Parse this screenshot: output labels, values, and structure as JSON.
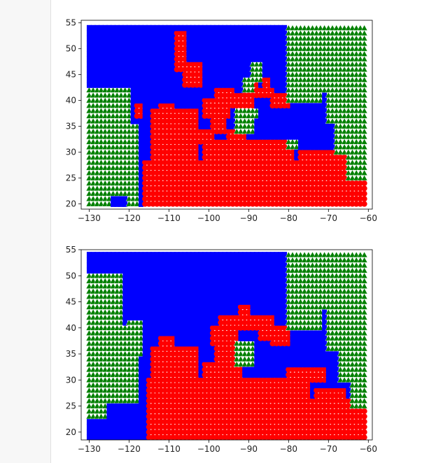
{
  "notebook": {
    "gutter_color": "#f7f7f7"
  },
  "colors": {
    "class_blue": "#0000ff",
    "class_red": "#ff0000",
    "class_green": "#008000",
    "marker_edge": "#ffffff",
    "axis": "#000000"
  },
  "chart_data": [
    {
      "type": "scatter",
      "title": "",
      "xlabel": "",
      "ylabel": "",
      "xlim": [
        -132,
        -59
      ],
      "ylim": [
        19,
        55.5
      ],
      "xticks": [
        -130,
        -120,
        -110,
        -100,
        -90,
        -80,
        -70,
        -60
      ],
      "yticks": [
        20,
        25,
        30,
        35,
        40,
        45,
        50,
        55
      ],
      "xtick_labels": [
        "−130",
        "−120",
        "−110",
        "−100",
        "−90",
        "−80",
        "−70",
        "−60"
      ],
      "ytick_labels": [
        "20",
        "25",
        "30",
        "35",
        "40",
        "45",
        "50",
        "55"
      ],
      "grid": false,
      "marker_spacing": 1,
      "x_range": [
        -130,
        -61
      ],
      "y_range": [
        20,
        54.5
      ],
      "series": [
        {
          "color": "blue",
          "marker": "square"
        },
        {
          "color": "red",
          "marker": "circle"
        },
        {
          "color": "green",
          "marker": "triangle"
        }
      ],
      "regions": {
        "red": [
          [
            -116,
            20,
            -61,
            28
          ],
          [
            -114,
            28,
            -103,
            38
          ],
          [
            -112,
            38,
            -109,
            39
          ],
          [
            -101,
            28,
            -79,
            32
          ],
          [
            -103,
            32,
            -99,
            34
          ],
          [
            -95,
            31,
            -91,
            34
          ],
          [
            -99,
            34,
            -96,
            38
          ],
          [
            -101,
            37,
            -95,
            40
          ],
          [
            -98,
            40,
            -94,
            42
          ],
          [
            -94,
            39,
            -89,
            41
          ],
          [
            -90,
            41,
            -84,
            42
          ],
          [
            -84,
            39,
            -80,
            41
          ],
          [
            -86,
            42,
            -85,
            44
          ],
          [
            -89,
            42,
            -88,
            43
          ],
          [
            -108,
            46,
            -106,
            53
          ],
          [
            -106,
            43,
            -102,
            47
          ],
          [
            -118,
            37,
            -117,
            39
          ],
          [
            -77,
            28,
            -65,
            30
          ],
          [
            -72,
            27,
            -64,
            28
          ]
        ],
        "green": [
          [
            -130,
            22,
            -120,
            42
          ],
          [
            -122,
            22,
            -118,
            35
          ],
          [
            -120,
            20,
            -118,
            27
          ],
          [
            -130,
            20,
            -125,
            22
          ],
          [
            -80,
            40,
            -72,
            54.5
          ],
          [
            -72,
            42,
            -61,
            54.5
          ],
          [
            -70,
            36,
            -61,
            42
          ],
          [
            -68,
            30,
            -61,
            36
          ],
          [
            -65,
            25,
            -61,
            30
          ],
          [
            -93,
            34,
            -89,
            38
          ],
          [
            -89,
            37,
            -88,
            38
          ],
          [
            -91,
            42,
            -89,
            44
          ],
          [
            -89,
            44,
            -87,
            47
          ],
          [
            -80,
            31,
            -78,
            32
          ]
        ]
      }
    },
    {
      "type": "scatter",
      "title": "",
      "xlabel": "",
      "ylabel": "",
      "xlim": [
        -132,
        -59
      ],
      "ylim": [
        18.5,
        55
      ],
      "xticks": [
        -130,
        -120,
        -110,
        -100,
        -90,
        -80,
        -70,
        -60
      ],
      "yticks": [
        20,
        25,
        30,
        35,
        40,
        45,
        50,
        55
      ],
      "xtick_labels": [
        "−130",
        "−120",
        "−110",
        "−100",
        "−90",
        "−80",
        "−70",
        "−60"
      ],
      "ytick_labels": [
        "20",
        "25",
        "30",
        "35",
        "40",
        "45",
        "50",
        "55"
      ],
      "grid": false,
      "marker_spacing": 1,
      "x_range": [
        -130,
        -61
      ],
      "y_range": [
        19,
        54.5
      ],
      "series": [
        {
          "color": "blue",
          "marker": "square"
        },
        {
          "color": "red",
          "marker": "circle"
        },
        {
          "color": "green",
          "marker": "triangle"
        }
      ],
      "regions": {
        "red": [
          [
            -115,
            19,
            -61,
            26
          ],
          [
            -115,
            26,
            -75,
            30
          ],
          [
            -114,
            30,
            -103,
            36
          ],
          [
            -112,
            36,
            -109,
            38
          ],
          [
            -101,
            30,
            -92,
            33
          ],
          [
            -98,
            33,
            -94,
            37
          ],
          [
            -99,
            37,
            -93,
            40
          ],
          [
            -97,
            40,
            -93,
            42
          ],
          [
            -93,
            40,
            -84,
            42
          ],
          [
            -92,
            42,
            -90,
            44
          ],
          [
            -84,
            37,
            -80,
            40
          ],
          [
            -87,
            38,
            -84,
            39
          ],
          [
            -80,
            30,
            -71,
            32
          ],
          [
            -73,
            26,
            -66,
            28
          ]
        ],
        "green": [
          [
            -130,
            30,
            -122,
            50
          ],
          [
            -125,
            26,
            -118,
            40
          ],
          [
            -130,
            23,
            -126,
            30
          ],
          [
            -120,
            35,
            -117,
            41
          ],
          [
            -80,
            40,
            -72,
            54.5
          ],
          [
            -72,
            44,
            -61,
            54.5
          ],
          [
            -70,
            36,
            -61,
            44
          ],
          [
            -67,
            30,
            -61,
            36
          ],
          [
            -64,
            25,
            -61,
            30
          ],
          [
            -93,
            33,
            -89,
            37
          ]
        ]
      }
    }
  ]
}
